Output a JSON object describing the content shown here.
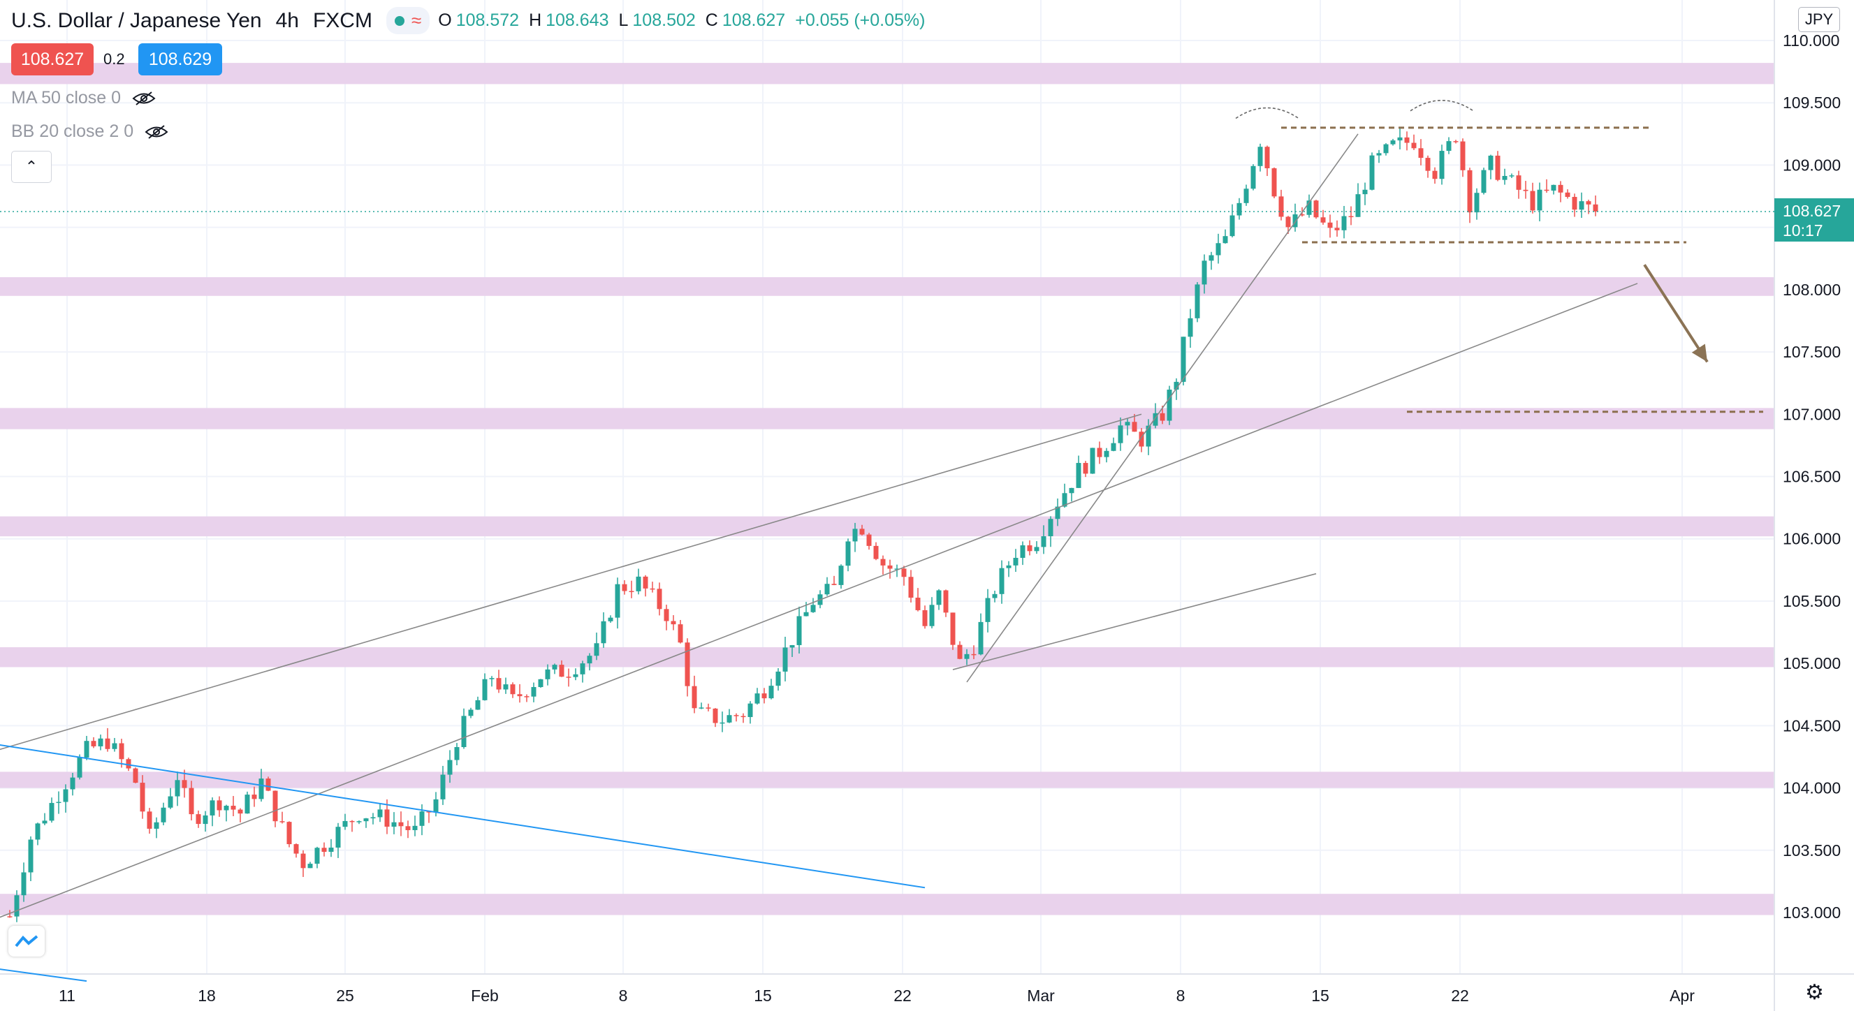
{
  "header": {
    "symbol_title": "U.S. Dollar / Japanese Yen",
    "interval": "4h",
    "exchange": "FXCM",
    "ohlc": {
      "o_label": "O",
      "o": "108.572",
      "h_label": "H",
      "h": "108.643",
      "l_label": "L",
      "l": "108.502",
      "c_label": "C",
      "c": "108.627",
      "change": "+0.055 (+0.05%)"
    }
  },
  "quote": {
    "bid": "108.627",
    "spread": "0.2",
    "ask": "108.629"
  },
  "indicators": [
    {
      "label": "MA 50 close 0",
      "icon": "eye-hidden-icon"
    },
    {
      "label": "BB 20 close 2 0",
      "icon": "eye-hidden-icon"
    }
  ],
  "currency": "JPY",
  "price_tag": {
    "price": "108.627",
    "countdown": "10:17"
  },
  "colors": {
    "up": "#26a69a",
    "down": "#ef5350",
    "zone": "#e9d2ec",
    "trend_blue": "#2196f3",
    "channel": "#888888",
    "dashed": "#8b6f4e",
    "arrow": "#8b7355",
    "bid_box": "#ef5350",
    "ask_box": "#2196f3"
  },
  "chart_data": {
    "type": "candlestick",
    "ylim": [
      102.8,
      110.2
    ],
    "y_ticks": [
      "110.000",
      "109.500",
      "109.000",
      "108.500",
      "108.000",
      "107.500",
      "107.000",
      "106.500",
      "106.000",
      "105.500",
      "105.000",
      "104.500",
      "104.000",
      "103.500",
      "103.000"
    ],
    "x_ticks": [
      "11",
      "18",
      "25",
      "Feb",
      "8",
      "15",
      "22",
      "Mar",
      "8",
      "15",
      "22",
      "Apr"
    ],
    "last_price": 108.627,
    "series_anchors": [
      {
        "t": 0,
        "p": 102.97
      },
      {
        "t": 3,
        "p": 103.6
      },
      {
        "t": 8,
        "p": 104.05
      },
      {
        "t": 11,
        "p": 104.3
      },
      {
        "t": 14,
        "p": 104.38
      },
      {
        "t": 18,
        "p": 104.05
      },
      {
        "t": 20,
        "p": 103.6
      },
      {
        "t": 24,
        "p": 104.1
      },
      {
        "t": 26,
        "p": 103.75
      },
      {
        "t": 30,
        "p": 103.9
      },
      {
        "t": 33,
        "p": 103.8
      },
      {
        "t": 36,
        "p": 104.05
      },
      {
        "t": 40,
        "p": 103.55
      },
      {
        "t": 42,
        "p": 103.4
      },
      {
        "t": 46,
        "p": 103.6
      },
      {
        "t": 50,
        "p": 103.8
      },
      {
        "t": 54,
        "p": 103.75
      },
      {
        "t": 58,
        "p": 103.65
      },
      {
        "t": 61,
        "p": 103.9
      },
      {
        "t": 64,
        "p": 104.4
      },
      {
        "t": 67,
        "p": 104.7
      },
      {
        "t": 69,
        "p": 104.9
      },
      {
        "t": 72,
        "p": 104.7
      },
      {
        "t": 76,
        "p": 104.9
      },
      {
        "t": 80,
        "p": 104.95
      },
      {
        "t": 84,
        "p": 105.1
      },
      {
        "t": 87,
        "p": 105.6
      },
      {
        "t": 90,
        "p": 105.65
      },
      {
        "t": 94,
        "p": 105.4
      },
      {
        "t": 96,
        "p": 105.15
      },
      {
        "t": 98,
        "p": 104.6
      },
      {
        "t": 102,
        "p": 104.55
      },
      {
        "t": 105,
        "p": 104.6
      },
      {
        "t": 108,
        "p": 104.8
      },
      {
        "t": 112,
        "p": 105.2
      },
      {
        "t": 115,
        "p": 105.5
      },
      {
        "t": 118,
        "p": 105.6
      },
      {
        "t": 120,
        "p": 106.05
      },
      {
        "t": 122,
        "p": 106.1
      },
      {
        "t": 125,
        "p": 105.8
      },
      {
        "t": 128,
        "p": 105.7
      },
      {
        "t": 131,
        "p": 105.3
      },
      {
        "t": 133,
        "p": 105.55
      },
      {
        "t": 136,
        "p": 105.0
      },
      {
        "t": 138,
        "p": 105.15
      },
      {
        "t": 141,
        "p": 105.6
      },
      {
        "t": 144,
        "p": 105.9
      },
      {
        "t": 147,
        "p": 106.0
      },
      {
        "t": 150,
        "p": 106.3
      },
      {
        "t": 153,
        "p": 106.55
      },
      {
        "t": 156,
        "p": 106.7
      },
      {
        "t": 159,
        "p": 106.9
      },
      {
        "t": 162,
        "p": 106.8
      },
      {
        "t": 165,
        "p": 107.0
      },
      {
        "t": 167,
        "p": 107.3
      },
      {
        "t": 169,
        "p": 107.8
      },
      {
        "t": 171,
        "p": 108.2
      },
      {
        "t": 174,
        "p": 108.4
      },
      {
        "t": 176,
        "p": 108.7
      },
      {
        "t": 179,
        "p": 109.2
      },
      {
        "t": 181,
        "p": 108.8
      },
      {
        "t": 183,
        "p": 108.5
      },
      {
        "t": 186,
        "p": 108.65
      },
      {
        "t": 189,
        "p": 108.45
      },
      {
        "t": 192,
        "p": 108.6
      },
      {
        "t": 195,
        "p": 109.0
      },
      {
        "t": 198,
        "p": 109.15
      },
      {
        "t": 201,
        "p": 109.2
      },
      {
        "t": 204,
        "p": 108.95
      },
      {
        "t": 207,
        "p": 109.25
      },
      {
        "t": 209,
        "p": 108.7
      },
      {
        "t": 212,
        "p": 109.0
      },
      {
        "t": 215,
        "p": 108.85
      },
      {
        "t": 218,
        "p": 108.7
      },
      {
        "t": 221,
        "p": 108.8
      },
      {
        "t": 224,
        "p": 108.7
      },
      {
        "t": 227,
        "p": 108.63
      }
    ],
    "zones": [
      [
        109.65,
        109.82
      ],
      [
        107.95,
        108.1
      ],
      [
        106.88,
        107.05
      ],
      [
        106.02,
        106.18
      ],
      [
        104.97,
        105.13
      ],
      [
        104.0,
        104.13
      ],
      [
        102.98,
        103.15
      ]
    ],
    "channel_lines": [
      {
        "from": {
          "t": -2,
          "p": 104.3
        },
        "to": {
          "t": 162,
          "p": 107.0
        }
      },
      {
        "from": {
          "t": -2,
          "p": 102.95
        },
        "to": {
          "t": 233,
          "p": 108.05
        }
      },
      {
        "from": {
          "t": 137,
          "p": 104.85
        },
        "to": {
          "t": 193,
          "p": 109.25
        }
      },
      {
        "from": {
          "t": 135,
          "p": 104.95
        },
        "to": {
          "t": 187,
          "p": 105.72
        }
      }
    ],
    "trend_lines": [
      {
        "from": {
          "t": -2,
          "p": 104.35
        },
        "to": {
          "t": 131,
          "p": 103.2
        }
      },
      {
        "from": {
          "t": -2,
          "p": 102.55
        },
        "to": {
          "t": 11,
          "p": 102.45
        }
      }
    ],
    "dashed_levels": [
      {
        "from": 182,
        "to": 235,
        "p": 109.3
      },
      {
        "from": 185,
        "to": 240,
        "p": 108.38
      },
      {
        "from": 200,
        "to": 251,
        "p": 107.02
      }
    ],
    "hump_marks": [
      {
        "t": 180,
        "p": 109.42
      },
      {
        "t": 205,
        "p": 109.48
      }
    ],
    "arrow": {
      "from": {
        "t": 234,
        "p": 108.2
      },
      "to": {
        "t": 243,
        "p": 107.42
      }
    }
  }
}
